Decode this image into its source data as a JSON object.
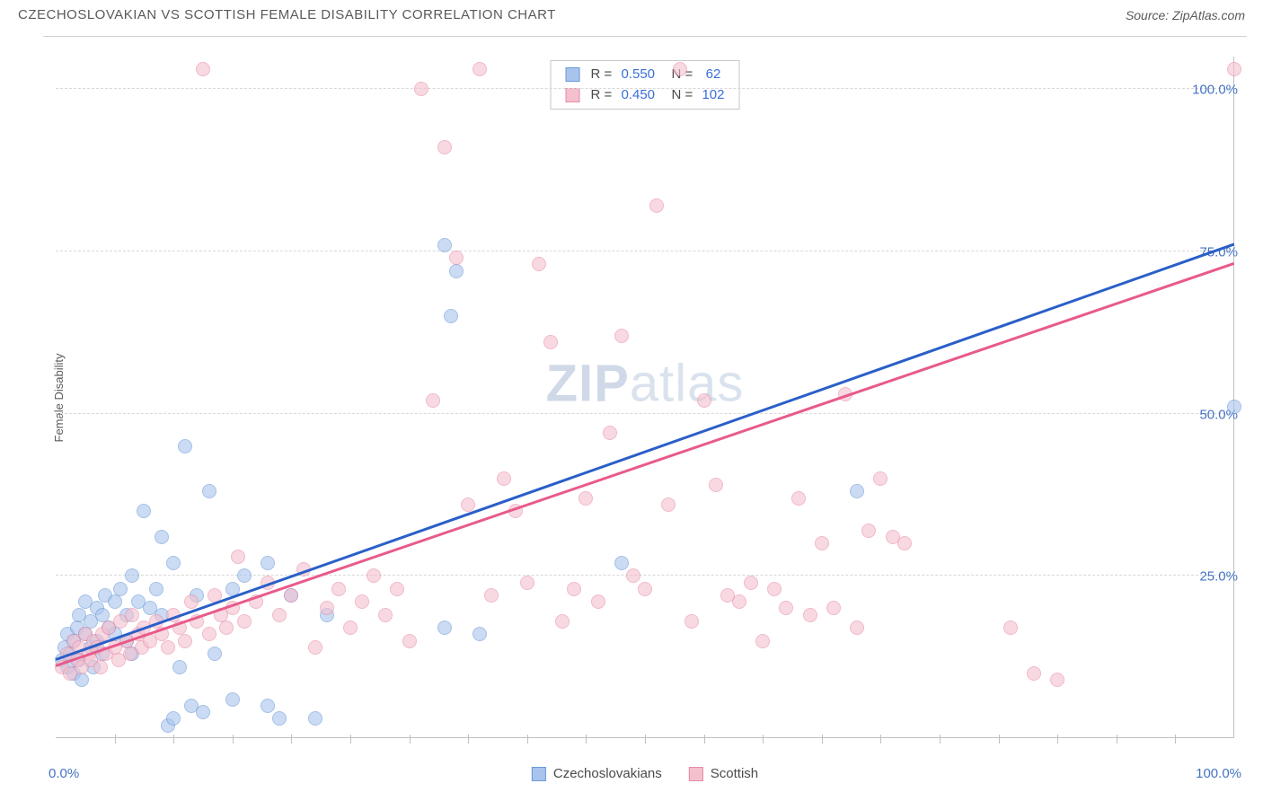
{
  "title": "CZECHOSLOVAKIAN VS SCOTTISH FEMALE DISABILITY CORRELATION CHART",
  "source": "Source: ZipAtlas.com",
  "y_axis_label": "Female Disability",
  "watermark": {
    "bold": "ZIP",
    "light": "atlas"
  },
  "chart": {
    "type": "scatter",
    "xlim": [
      0,
      100
    ],
    "ylim": [
      0,
      105
    ],
    "x_min_label": "0.0%",
    "x_max_label": "100.0%",
    "y_ticks": [
      {
        "v": 25,
        "label": "25.0%"
      },
      {
        "v": 50,
        "label": "50.0%"
      },
      {
        "v": 75,
        "label": "75.0%"
      },
      {
        "v": 100,
        "label": "100.0%"
      }
    ],
    "x_ticks_minor": [
      5,
      10,
      15,
      20,
      25,
      30,
      35,
      40,
      45,
      50,
      55,
      60,
      65,
      70,
      75,
      80,
      85,
      90,
      95
    ],
    "background_color": "#ffffff",
    "grid_color": "#d8d8d8",
    "axis_color": "#c0c0c0",
    "tick_label_color": "#4472c4",
    "marker_radius": 8,
    "marker_fill_opacity": 0.35,
    "marker_stroke_opacity": 0.9,
    "series": [
      {
        "name": "Czechoslovakians",
        "color_fill": "#a8c4ec",
        "color_stroke": "#6a98d8",
        "R": "0.550",
        "N": "62",
        "trend": {
          "x1": 0,
          "y1": 12,
          "x2": 100,
          "y2": 76,
          "color": "#2a5fc8",
          "width": 2.5
        },
        "points": [
          [
            0.5,
            12
          ],
          [
            0.8,
            14
          ],
          [
            1,
            11
          ],
          [
            1,
            16
          ],
          [
            1.2,
            13
          ],
          [
            1.5,
            10
          ],
          [
            1.5,
            15
          ],
          [
            1.8,
            17
          ],
          [
            2,
            12
          ],
          [
            2,
            19
          ],
          [
            2.2,
            9
          ],
          [
            2.5,
            16
          ],
          [
            2.5,
            21
          ],
          [
            3,
            14
          ],
          [
            3,
            18
          ],
          [
            3.2,
            11
          ],
          [
            3.5,
            20
          ],
          [
            3.5,
            15
          ],
          [
            4,
            19
          ],
          [
            4,
            13
          ],
          [
            4.2,
            22
          ],
          [
            4.5,
            17
          ],
          [
            5,
            16
          ],
          [
            5,
            21
          ],
          [
            5.5,
            23
          ],
          [
            6,
            19
          ],
          [
            6,
            15
          ],
          [
            6.5,
            13
          ],
          [
            6.5,
            25
          ],
          [
            7,
            21
          ],
          [
            7.5,
            35
          ],
          [
            8,
            20
          ],
          [
            8.5,
            23
          ],
          [
            9,
            31
          ],
          [
            9,
            19
          ],
          [
            9.5,
            2
          ],
          [
            10,
            27
          ],
          [
            10,
            3
          ],
          [
            10.5,
            11
          ],
          [
            11,
            45
          ],
          [
            11.5,
            5
          ],
          [
            12,
            22
          ],
          [
            12.5,
            4
          ],
          [
            13,
            38
          ],
          [
            13.5,
            13
          ],
          [
            15,
            23
          ],
          [
            15,
            6
          ],
          [
            16,
            25
          ],
          [
            18,
            5
          ],
          [
            18,
            27
          ],
          [
            19,
            3
          ],
          [
            20,
            22
          ],
          [
            22,
            3
          ],
          [
            23,
            19
          ],
          [
            33,
            76
          ],
          [
            33,
            17
          ],
          [
            33.5,
            65
          ],
          [
            34,
            72
          ],
          [
            36,
            16
          ],
          [
            48,
            27
          ],
          [
            68,
            38
          ],
          [
            100,
            51
          ]
        ]
      },
      {
        "name": "Scottish",
        "color_fill": "#f4c0ce",
        "color_stroke": "#e88ba6",
        "R": "0.450",
        "N": "102",
        "trend": {
          "x1": 0,
          "y1": 11,
          "x2": 100,
          "y2": 73,
          "color": "#e85a8a",
          "width": 2.5
        },
        "points": [
          [
            0.5,
            11
          ],
          [
            1,
            13
          ],
          [
            1.2,
            10
          ],
          [
            1.5,
            15
          ],
          [
            1.8,
            12
          ],
          [
            2,
            14
          ],
          [
            2.2,
            11
          ],
          [
            2.5,
            16
          ],
          [
            2.8,
            13
          ],
          [
            3,
            12
          ],
          [
            3.2,
            15
          ],
          [
            3.5,
            14
          ],
          [
            3.8,
            11
          ],
          [
            4,
            16
          ],
          [
            4.3,
            13
          ],
          [
            4.5,
            17
          ],
          [
            5,
            14
          ],
          [
            5.3,
            12
          ],
          [
            5.5,
            18
          ],
          [
            6,
            15
          ],
          [
            6.3,
            13
          ],
          [
            6.5,
            19
          ],
          [
            7,
            16
          ],
          [
            7.3,
            14
          ],
          [
            7.5,
            17
          ],
          [
            8,
            15
          ],
          [
            8.5,
            18
          ],
          [
            9,
            16
          ],
          [
            9.5,
            14
          ],
          [
            10,
            19
          ],
          [
            10.5,
            17
          ],
          [
            11,
            15
          ],
          [
            11.5,
            21
          ],
          [
            12,
            18
          ],
          [
            12.5,
            103
          ],
          [
            13,
            16
          ],
          [
            13.5,
            22
          ],
          [
            14,
            19
          ],
          [
            14.5,
            17
          ],
          [
            15,
            20
          ],
          [
            15.5,
            28
          ],
          [
            16,
            18
          ],
          [
            17,
            21
          ],
          [
            18,
            24
          ],
          [
            19,
            19
          ],
          [
            20,
            22
          ],
          [
            21,
            26
          ],
          [
            22,
            14
          ],
          [
            23,
            20
          ],
          [
            24,
            23
          ],
          [
            25,
            17
          ],
          [
            26,
            21
          ],
          [
            27,
            25
          ],
          [
            28,
            19
          ],
          [
            29,
            23
          ],
          [
            30,
            15
          ],
          [
            31,
            100
          ],
          [
            32,
            52
          ],
          [
            33,
            91
          ],
          [
            34,
            74
          ],
          [
            35,
            36
          ],
          [
            36,
            103
          ],
          [
            37,
            22
          ],
          [
            38,
            40
          ],
          [
            39,
            35
          ],
          [
            40,
            24
          ],
          [
            41,
            73
          ],
          [
            42,
            61
          ],
          [
            43,
            18
          ],
          [
            44,
            23
          ],
          [
            45,
            37
          ],
          [
            46,
            21
          ],
          [
            47,
            47
          ],
          [
            48,
            62
          ],
          [
            49,
            25
          ],
          [
            50,
            23
          ],
          [
            51,
            82
          ],
          [
            52,
            36
          ],
          [
            53,
            103
          ],
          [
            54,
            18
          ],
          [
            55,
            52
          ],
          [
            56,
            39
          ],
          [
            57,
            22
          ],
          [
            58,
            21
          ],
          [
            59,
            24
          ],
          [
            60,
            15
          ],
          [
            61,
            23
          ],
          [
            62,
            20
          ],
          [
            63,
            37
          ],
          [
            64,
            19
          ],
          [
            65,
            30
          ],
          [
            66,
            20
          ],
          [
            67,
            53
          ],
          [
            68,
            17
          ],
          [
            69,
            32
          ],
          [
            70,
            40
          ],
          [
            71,
            31
          ],
          [
            72,
            30
          ],
          [
            81,
            17
          ],
          [
            83,
            10
          ],
          [
            85,
            9
          ],
          [
            100,
            103
          ]
        ]
      }
    ]
  },
  "stats_box": {
    "rows": [
      {
        "swatch_fill": "#a8c4ec",
        "swatch_stroke": "#6a98d8",
        "r_label": "R = ",
        "r_val": "0.550",
        "n_label": "   N = ",
        "n_val": " 62"
      },
      {
        "swatch_fill": "#f4c0ce",
        "swatch_stroke": "#e88ba6",
        "r_label": "R = ",
        "r_val": "0.450",
        "n_label": "   N = ",
        "n_val": "102"
      }
    ]
  },
  "legend": [
    {
      "label": "Czechoslovakians",
      "fill": "#a8c4ec",
      "stroke": "#6a98d8"
    },
    {
      "label": "Scottish",
      "fill": "#f4c0ce",
      "stroke": "#e88ba6"
    }
  ]
}
